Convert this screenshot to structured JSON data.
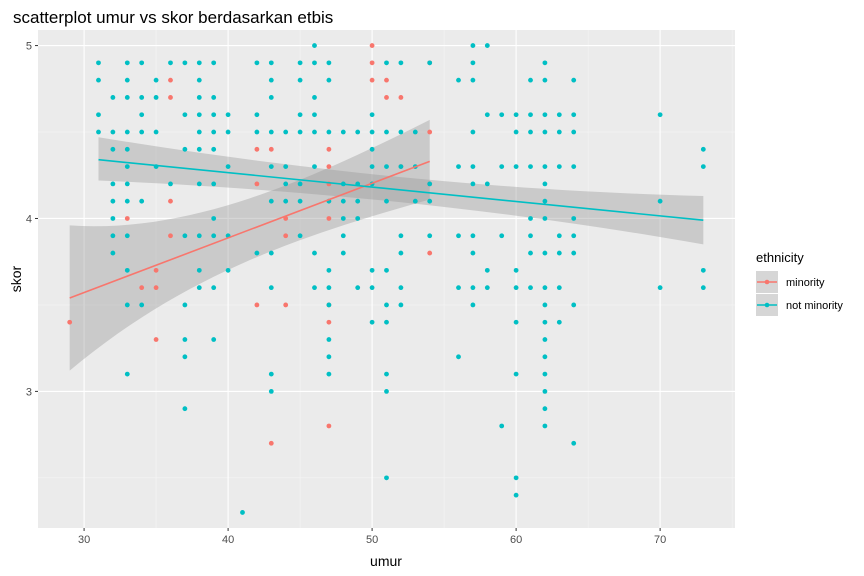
{
  "chart_data": {
    "type": "scatter",
    "title": "scatterplot umur vs skor berdasarkan etbis",
    "xlabel": "umur",
    "ylabel": "skor",
    "xlim": [
      26.8,
      75.2
    ],
    "ylim": [
      2.21,
      5.09
    ],
    "x_ticks": [
      30,
      40,
      50,
      60,
      70
    ],
    "y_ticks": [
      3,
      4,
      5
    ],
    "x_tick_labels": [
      "30",
      "40",
      "50",
      "60",
      "70"
    ],
    "y_tick_labels": [
      "3",
      "4",
      "5"
    ],
    "colors": {
      "panel": "#ebebeb",
      "grid_major": "#ffffff",
      "minority": "#F8766D",
      "not_minority": "#00BFC4",
      "ribbon": "#999999"
    },
    "legend": {
      "title": "ethnicity",
      "position": "right",
      "entries": [
        "minority",
        "not minority"
      ]
    },
    "series": [
      {
        "name": "minority",
        "points": [
          [
            29,
            3.4
          ],
          [
            33,
            4.0
          ],
          [
            34,
            3.6
          ],
          [
            35,
            3.7
          ],
          [
            35,
            3.6
          ],
          [
            35,
            3.3
          ],
          [
            36,
            4.8
          ],
          [
            36,
            4.7
          ],
          [
            36,
            4.1
          ],
          [
            36,
            3.9
          ],
          [
            42,
            4.4
          ],
          [
            42,
            4.2
          ],
          [
            42,
            3.5
          ],
          [
            43,
            4.4
          ],
          [
            43,
            2.7
          ],
          [
            44,
            4.0
          ],
          [
            44,
            3.9
          ],
          [
            44,
            3.5
          ],
          [
            47,
            4.4
          ],
          [
            47,
            4.3
          ],
          [
            47,
            4.2
          ],
          [
            47,
            4.0
          ],
          [
            47,
            3.5
          ],
          [
            47,
            3.4
          ],
          [
            47,
            2.8
          ],
          [
            50,
            5.0
          ],
          [
            50,
            4.9
          ],
          [
            50,
            4.8
          ],
          [
            51,
            4.8
          ],
          [
            51,
            4.7
          ],
          [
            52,
            4.7
          ],
          [
            52,
            4.3
          ],
          [
            54,
            4.9
          ],
          [
            54,
            4.5
          ],
          [
            54,
            4.2
          ],
          [
            54,
            3.8
          ]
        ],
        "fit": {
          "x": [
            29,
            54
          ],
          "y": [
            3.54,
            4.33
          ],
          "lower": [
            3.12,
            4.11
          ],
          "upper": [
            3.96,
            4.57
          ]
        }
      },
      {
        "name": "not minority",
        "points": [
          [
            31,
            4.9
          ],
          [
            31,
            4.8
          ],
          [
            31,
            4.6
          ],
          [
            31,
            4.5
          ],
          [
            32,
            4.7
          ],
          [
            32,
            4.5
          ],
          [
            32,
            4.4
          ],
          [
            32,
            4.2
          ],
          [
            32,
            4.1
          ],
          [
            32,
            4.0
          ],
          [
            32,
            3.9
          ],
          [
            32,
            3.8
          ],
          [
            33,
            4.9
          ],
          [
            33,
            4.8
          ],
          [
            33,
            4.7
          ],
          [
            33,
            4.5
          ],
          [
            33,
            4.4
          ],
          [
            33,
            4.3
          ],
          [
            33,
            4.2
          ],
          [
            33,
            4.1
          ],
          [
            33,
            3.9
          ],
          [
            33,
            3.7
          ],
          [
            33,
            3.5
          ],
          [
            33,
            3.1
          ],
          [
            34,
            4.9
          ],
          [
            34,
            4.7
          ],
          [
            34,
            4.6
          ],
          [
            34,
            4.5
          ],
          [
            34,
            4.1
          ],
          [
            34,
            3.5
          ],
          [
            35,
            4.8
          ],
          [
            35,
            4.7
          ],
          [
            35,
            4.5
          ],
          [
            35,
            4.3
          ],
          [
            36,
            4.9
          ],
          [
            36,
            4.2
          ],
          [
            37,
            4.9
          ],
          [
            37,
            4.6
          ],
          [
            37,
            4.4
          ],
          [
            37,
            3.9
          ],
          [
            37,
            3.5
          ],
          [
            37,
            3.3
          ],
          [
            37,
            3.2
          ],
          [
            37,
            2.9
          ],
          [
            38,
            4.9
          ],
          [
            38,
            4.8
          ],
          [
            38,
            4.7
          ],
          [
            38,
            4.6
          ],
          [
            38,
            4.5
          ],
          [
            38,
            4.4
          ],
          [
            38,
            4.2
          ],
          [
            38,
            3.9
          ],
          [
            38,
            3.7
          ],
          [
            38,
            3.6
          ],
          [
            39,
            4.9
          ],
          [
            39,
            4.7
          ],
          [
            39,
            4.6
          ],
          [
            39,
            4.5
          ],
          [
            39,
            4.4
          ],
          [
            39,
            4.2
          ],
          [
            39,
            4.0
          ],
          [
            39,
            3.9
          ],
          [
            39,
            3.6
          ],
          [
            39,
            3.3
          ],
          [
            40,
            4.6
          ],
          [
            40,
            4.5
          ],
          [
            40,
            4.3
          ],
          [
            40,
            3.9
          ],
          [
            40,
            3.7
          ],
          [
            41,
            2.3
          ],
          [
            42,
            4.9
          ],
          [
            42,
            4.6
          ],
          [
            42,
            4.5
          ],
          [
            42,
            3.8
          ],
          [
            43,
            4.9
          ],
          [
            43,
            4.8
          ],
          [
            43,
            4.7
          ],
          [
            43,
            4.5
          ],
          [
            43,
            4.3
          ],
          [
            43,
            4.1
          ],
          [
            43,
            3.8
          ],
          [
            43,
            3.6
          ],
          [
            43,
            3.1
          ],
          [
            43,
            3.0
          ],
          [
            44,
            4.5
          ],
          [
            44,
            4.3
          ],
          [
            44,
            4.2
          ],
          [
            44,
            4.1
          ],
          [
            45,
            4.9
          ],
          [
            45,
            4.8
          ],
          [
            45,
            4.6
          ],
          [
            45,
            4.5
          ],
          [
            45,
            4.2
          ],
          [
            45,
            4.1
          ],
          [
            45,
            3.9
          ],
          [
            46,
            5.0
          ],
          [
            46,
            4.9
          ],
          [
            46,
            4.7
          ],
          [
            46,
            4.6
          ],
          [
            46,
            4.5
          ],
          [
            46,
            4.3
          ],
          [
            46,
            3.8
          ],
          [
            46,
            3.6
          ],
          [
            47,
            4.9
          ],
          [
            47,
            4.8
          ],
          [
            47,
            4.5
          ],
          [
            47,
            4.1
          ],
          [
            47,
            3.7
          ],
          [
            47,
            3.6
          ],
          [
            47,
            3.5
          ],
          [
            47,
            3.3
          ],
          [
            47,
            3.2
          ],
          [
            47,
            3.1
          ],
          [
            48,
            4.5
          ],
          [
            48,
            4.2
          ],
          [
            48,
            4.1
          ],
          [
            48,
            4.0
          ],
          [
            48,
            3.9
          ],
          [
            48,
            3.8
          ],
          [
            49,
            4.5
          ],
          [
            49,
            4.2
          ],
          [
            49,
            4.1
          ],
          [
            49,
            4.0
          ],
          [
            49,
            3.6
          ],
          [
            50,
            4.6
          ],
          [
            50,
            4.5
          ],
          [
            50,
            4.4
          ],
          [
            50,
            4.3
          ],
          [
            50,
            4.2
          ],
          [
            50,
            3.7
          ],
          [
            50,
            3.6
          ],
          [
            50,
            3.4
          ],
          [
            51,
            4.9
          ],
          [
            51,
            4.5
          ],
          [
            51,
            4.3
          ],
          [
            51,
            4.1
          ],
          [
            51,
            3.7
          ],
          [
            51,
            3.5
          ],
          [
            51,
            3.4
          ],
          [
            51,
            3.1
          ],
          [
            51,
            3.0
          ],
          [
            51,
            2.5
          ],
          [
            52,
            4.9
          ],
          [
            52,
            4.5
          ],
          [
            52,
            4.3
          ],
          [
            52,
            3.9
          ],
          [
            52,
            3.8
          ],
          [
            52,
            3.6
          ],
          [
            52,
            3.5
          ],
          [
            53,
            4.5
          ],
          [
            53,
            4.3
          ],
          [
            53,
            4.1
          ],
          [
            54,
            4.9
          ],
          [
            54,
            4.2
          ],
          [
            54,
            4.1
          ],
          [
            54,
            3.9
          ],
          [
            56,
            4.8
          ],
          [
            56,
            4.3
          ],
          [
            56,
            3.9
          ],
          [
            56,
            3.6
          ],
          [
            56,
            3.2
          ],
          [
            57,
            5.0
          ],
          [
            57,
            4.9
          ],
          [
            57,
            4.8
          ],
          [
            57,
            4.5
          ],
          [
            57,
            4.3
          ],
          [
            57,
            4.2
          ],
          [
            57,
            3.9
          ],
          [
            57,
            3.8
          ],
          [
            57,
            3.6
          ],
          [
            57,
            3.5
          ],
          [
            58,
            5.0
          ],
          [
            58,
            4.6
          ],
          [
            58,
            4.2
          ],
          [
            58,
            3.7
          ],
          [
            58,
            3.6
          ],
          [
            59,
            4.6
          ],
          [
            59,
            4.3
          ],
          [
            59,
            3.9
          ],
          [
            59,
            2.8
          ],
          [
            60,
            4.6
          ],
          [
            60,
            4.5
          ],
          [
            60,
            4.3
          ],
          [
            60,
            3.7
          ],
          [
            60,
            3.6
          ],
          [
            60,
            3.4
          ],
          [
            60,
            3.1
          ],
          [
            60,
            2.5
          ],
          [
            60,
            2.4
          ],
          [
            61,
            4.8
          ],
          [
            61,
            4.6
          ],
          [
            61,
            4.5
          ],
          [
            61,
            4.3
          ],
          [
            61,
            4.0
          ],
          [
            61,
            3.9
          ],
          [
            61,
            3.8
          ],
          [
            61,
            3.6
          ],
          [
            62,
            4.9
          ],
          [
            62,
            4.8
          ],
          [
            62,
            4.6
          ],
          [
            62,
            4.5
          ],
          [
            62,
            4.3
          ],
          [
            62,
            4.2
          ],
          [
            62,
            4.1
          ],
          [
            62,
            4.0
          ],
          [
            62,
            3.8
          ],
          [
            62,
            3.6
          ],
          [
            62,
            3.5
          ],
          [
            62,
            3.4
          ],
          [
            62,
            3.3
          ],
          [
            62,
            3.2
          ],
          [
            62,
            3.1
          ],
          [
            62,
            3.0
          ],
          [
            62,
            2.9
          ],
          [
            62,
            2.8
          ],
          [
            63,
            4.6
          ],
          [
            63,
            4.5
          ],
          [
            63,
            4.3
          ],
          [
            63,
            3.9
          ],
          [
            63,
            3.8
          ],
          [
            63,
            3.6
          ],
          [
            63,
            3.4
          ],
          [
            64,
            4.8
          ],
          [
            64,
            4.6
          ],
          [
            64,
            4.5
          ],
          [
            64,
            4.3
          ],
          [
            64,
            4.0
          ],
          [
            64,
            3.9
          ],
          [
            64,
            3.8
          ],
          [
            64,
            3.5
          ],
          [
            64,
            2.7
          ],
          [
            70,
            4.6
          ],
          [
            70,
            4.1
          ],
          [
            70,
            3.6
          ],
          [
            73,
            4.4
          ],
          [
            73,
            4.3
          ],
          [
            73,
            3.7
          ],
          [
            73,
            3.6
          ]
        ],
        "fit": {
          "x": [
            31,
            73
          ],
          "y": [
            4.34,
            3.99
          ],
          "lower": [
            4.22,
            3.85
          ],
          "upper": [
            4.47,
            4.13
          ]
        }
      }
    ]
  }
}
